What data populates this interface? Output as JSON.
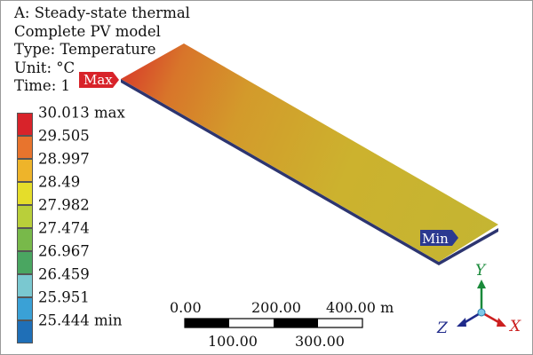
{
  "header": {
    "analysis": "A: Steady-state thermal",
    "model": "Complete PV model",
    "type": "Type: Temperature",
    "unit": "Unit: °C",
    "time": "Time: 1"
  },
  "legend": {
    "labels": [
      "30.013 max",
      "29.505",
      "28.997",
      "28.49",
      "27.982",
      "27.474",
      "26.967",
      "26.459",
      "25.951",
      "25.444 min"
    ],
    "colors": [
      "#d8232a",
      "#e8742d",
      "#eeb42a",
      "#e5dd2a",
      "#b9cf3a",
      "#78b94a",
      "#4aa661",
      "#7ac8d0",
      "#3aa1d6",
      "#1f6fb7"
    ]
  },
  "probes": {
    "max_label": "Max",
    "min_label": "Min",
    "max_color": "#d8232a",
    "min_color": "#2b3990"
  },
  "scale_bar": {
    "top_labels": [
      "0.00",
      "200.00",
      "400.00 m"
    ],
    "bottom_labels": [
      "100.00",
      "300.00"
    ]
  },
  "triad": {
    "x_label": "X",
    "y_label": "Y",
    "z_label": "Z",
    "x_color": "#cc1f1f",
    "y_color": "#1a8a3a",
    "z_color": "#1f2a8a"
  }
}
